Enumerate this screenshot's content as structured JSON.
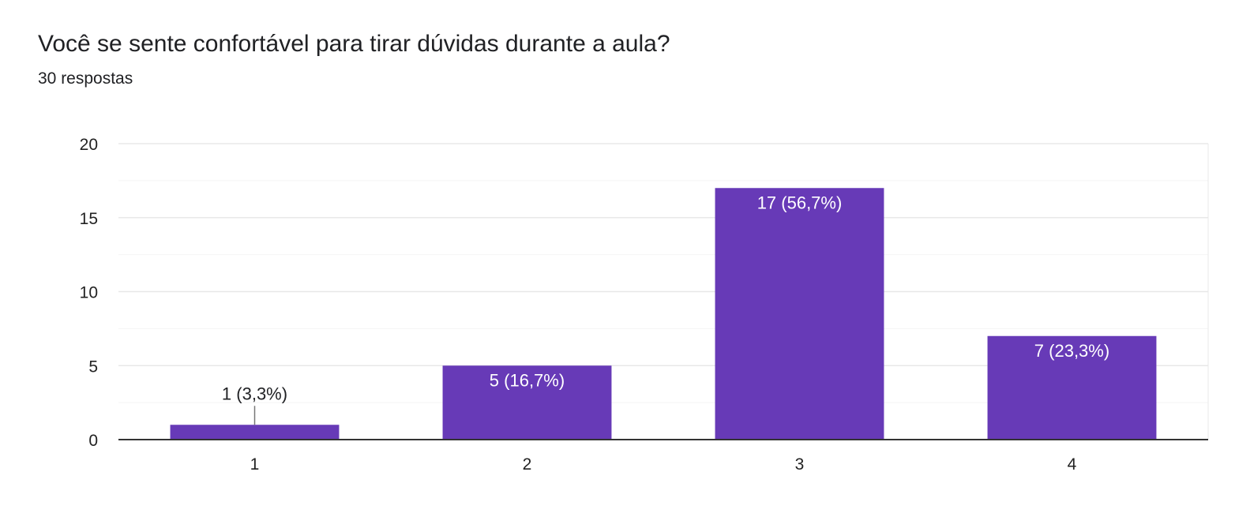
{
  "question": {
    "title": "Você se sente confortável para tirar dúvidas durante a aula?",
    "responses": "30 respostas"
  },
  "chart_data": {
    "type": "bar",
    "categories": [
      "1",
      "2",
      "3",
      "4"
    ],
    "values": [
      1,
      5,
      17,
      7
    ],
    "data_labels": [
      "1 (3,3%)",
      "5 (16,7%)",
      "17 (56,7%)",
      "7 (23,3%)"
    ],
    "y_ticks": [
      "0",
      "5",
      "10",
      "15",
      "20"
    ],
    "ylim": [
      0,
      20
    ],
    "grid": true,
    "title": "",
    "xlabel": "",
    "ylabel": ""
  },
  "colors": {
    "bar": "#673ab7",
    "grid_major": "#e8e8e8",
    "grid_minor": "#f4f4f4",
    "axis": "#333333",
    "label_on_bar": "#ffffff",
    "label_outside": "#202124",
    "tick_text": "#222222"
  }
}
